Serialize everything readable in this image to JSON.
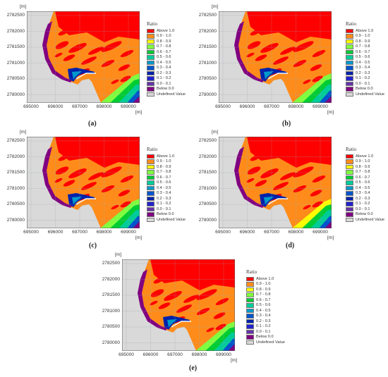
{
  "axis_unit": "[m]",
  "y_ticks": [
    "2782500",
    "2782000",
    "2781500",
    "2781000",
    "2780500",
    "2780000"
  ],
  "x_ticks": [
    "695000",
    "696000",
    "697000",
    "698000",
    "699000"
  ],
  "legend": {
    "title": "Ratio",
    "items": [
      {
        "label": "Above 1.0",
        "color": "#ff0000"
      },
      {
        "label": "0.9 - 1.0",
        "color": "#ff8c1a"
      },
      {
        "label": "0.8 - 0.9",
        "color": "#ffff00"
      },
      {
        "label": "0.7 - 0.8",
        "color": "#80ff40"
      },
      {
        "label": "0.6 - 0.7",
        "color": "#00cc33"
      },
      {
        "label": "0.5 - 0.6",
        "color": "#00cc99"
      },
      {
        "label": "0.4 - 0.5",
        "color": "#0099cc"
      },
      {
        "label": "0.3 - 0.4",
        "color": "#0055cc"
      },
      {
        "label": "0.2 - 0.3",
        "color": "#0022aa"
      },
      {
        "label": "0.1 - 0.2",
        "color": "#2222cc"
      },
      {
        "label": "0.0 - 0.1",
        "color": "#6633aa"
      },
      {
        "label": "Below 0.0",
        "color": "#800080"
      },
      {
        "label": "Undefined Value",
        "color": "#d9d9d9"
      }
    ]
  },
  "panels": [
    {
      "caption": "(a)"
    },
    {
      "caption": "(b)"
    },
    {
      "caption": "(c)"
    },
    {
      "caption": "(d)"
    },
    {
      "caption": "(e)"
    }
  ]
}
